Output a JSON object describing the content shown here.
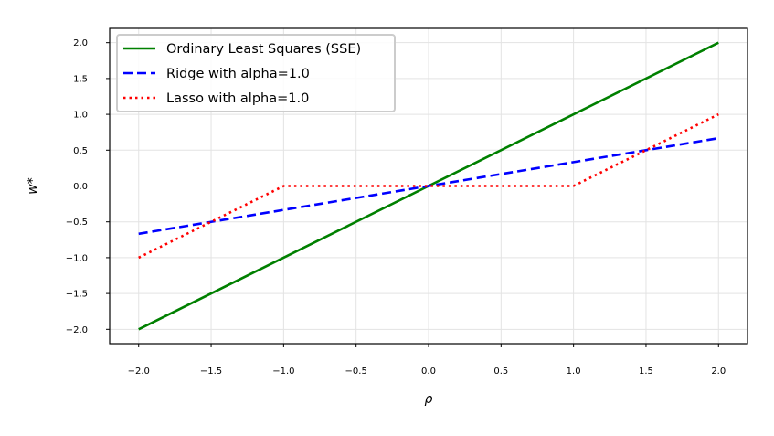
{
  "chart_data": {
    "type": "line",
    "xlabel": "ρ",
    "ylabel": "w*",
    "xlim": [
      -2.2,
      2.2
    ],
    "ylim": [
      -2.2,
      2.2
    ],
    "xticks": [
      -2.0,
      -1.5,
      -1.0,
      -0.5,
      0.0,
      0.5,
      1.0,
      1.5,
      2.0
    ],
    "yticks": [
      -2.0,
      -1.5,
      -1.0,
      -0.5,
      0.0,
      0.5,
      1.0,
      1.5,
      2.0
    ],
    "xtick_labels": [
      "−2.0",
      "−1.5",
      "−1.0",
      "−0.5",
      "0.0",
      "0.5",
      "1.0",
      "1.5",
      "2.0"
    ],
    "ytick_labels": [
      "−2.0",
      "−1.5",
      "−1.0",
      "−0.5",
      "0.0",
      "0.5",
      "1.0",
      "1.5",
      "2.0"
    ],
    "grid": true,
    "legend_position": "upper-left",
    "series": [
      {
        "name": "Ordinary Least Squares (SSE)",
        "color": "#008000",
        "style": "solid",
        "x": [
          -2.0,
          2.0
        ],
        "y": [
          -2.0,
          2.0
        ]
      },
      {
        "name": "Ridge with alpha=1.0",
        "color": "#0000ff",
        "style": "dashed",
        "x": [
          -2.0,
          2.0
        ],
        "y": [
          -0.667,
          0.667
        ]
      },
      {
        "name": "Lasso with alpha=1.0",
        "color": "#ff0000",
        "style": "dotted",
        "x": [
          -2.0,
          -1.0,
          1.0,
          2.0
        ],
        "y": [
          -1.0,
          0.0,
          0.0,
          1.0
        ]
      }
    ]
  }
}
